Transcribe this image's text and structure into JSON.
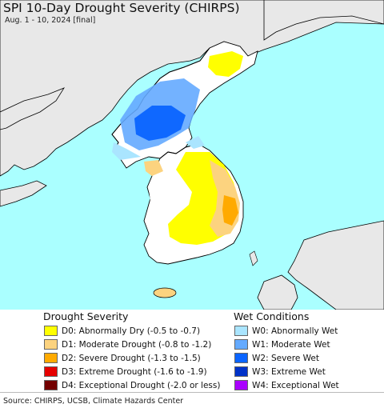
{
  "header": {
    "title": "SPI 10-Day Drought Severity (CHIRPS)",
    "subtitle": "Aug. 1 - 10, 2024 [final]"
  },
  "map": {
    "water_color": "#aaffff",
    "land_color": "#ffffff",
    "outside_land_color": "#e8e8e8",
    "border_color": "#000000"
  },
  "legend": {
    "drought_title": "Drought Severity",
    "wet_title": "Wet Conditions",
    "drought": [
      {
        "label": "D0: Abnormally Dry (-0.5 to -0.7)",
        "color": "#ffff00"
      },
      {
        "label": "D1: Moderate Drought (-0.8 to -1.2)",
        "color": "#fcd37f"
      },
      {
        "label": "D2: Severe Drought (-1.3 to -1.5)",
        "color": "#ffaa00"
      },
      {
        "label": "D3: Extreme Drought (-1.6 to -1.9)",
        "color": "#e60000"
      },
      {
        "label": "D4: Exceptional Drought (-2.0 or less)",
        "color": "#730000"
      }
    ],
    "wet": [
      {
        "label": "W0: Abnormally Wet",
        "color": "#aae5ff"
      },
      {
        "label": "W1: Moderate Wet",
        "color": "#64aaff"
      },
      {
        "label": "W2: Severe Wet",
        "color": "#0a64ff"
      },
      {
        "label": "W3: Extreme Wet",
        "color": "#0032c8"
      },
      {
        "label": "W4: Exceptional Wet",
        "color": "#aa00ff"
      }
    ]
  },
  "footer": {
    "source": "Source: CHIRPS, UCSB, Climate Hazards Center"
  }
}
